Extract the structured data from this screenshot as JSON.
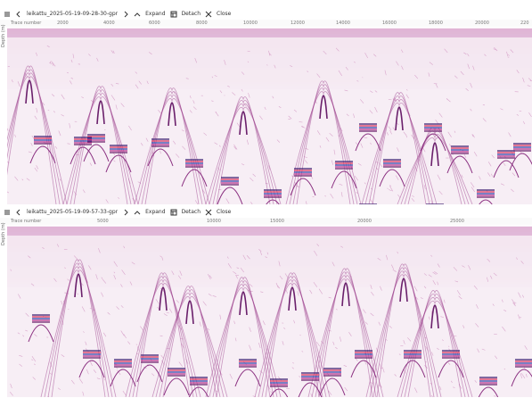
{
  "panels": [
    {
      "file_name": "leikattu_2025-05-19-09-28-30-gpr",
      "expand": "Expand",
      "detach": "Detach",
      "close": "Close",
      "x_axis_label": "Trace number",
      "y_axis_label": "Depth (m)",
      "x_ticks": [
        "2000",
        "4000",
        "6000",
        "8000",
        "10000",
        "12000",
        "14000",
        "16000",
        "18000",
        "20000",
        "220"
      ]
    },
    {
      "file_name": "leikattu_2025-05-19-09-57-33-gpr",
      "expand": "Expand",
      "detach": "Detach",
      "close": "Close",
      "x_axis_label": "Trace number",
      "y_axis_label": "Depth (m)",
      "x_ticks": [
        "5000",
        "10000",
        "15000",
        "20000",
        "25000"
      ]
    }
  ]
}
